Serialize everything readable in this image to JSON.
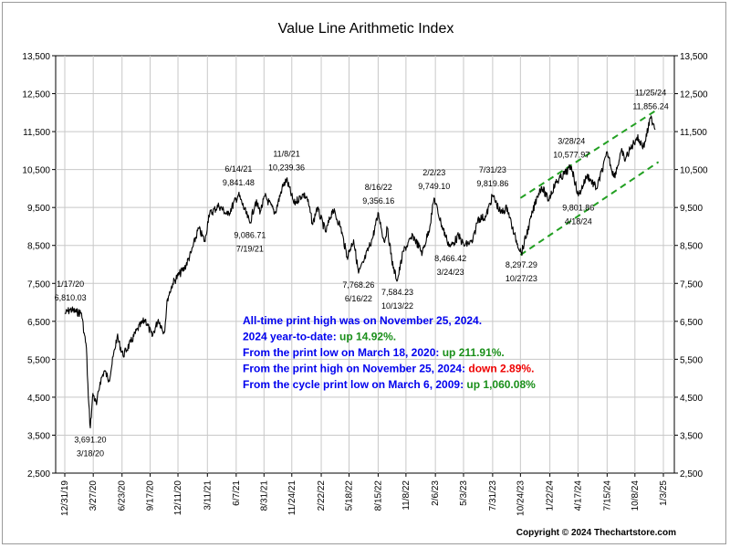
{
  "chart_data": {
    "type": "line",
    "title": "Value Line Arithmetic Index",
    "xlabel": "",
    "ylabel": "",
    "ylim": [
      2500,
      13500
    ],
    "yticks": [
      2500,
      3500,
      4500,
      5500,
      6500,
      7500,
      8500,
      9500,
      10500,
      11500,
      12500,
      13500
    ],
    "ytick_labels": [
      "2,500",
      "3,500",
      "4,500",
      "5,500",
      "6,500",
      "7,500",
      "8,500",
      "9,500",
      "10,500",
      "11,500",
      "12,500",
      "13,500"
    ],
    "xlim": [
      "2019-12-31",
      "2025-01-03"
    ],
    "xticks": [
      "2019-12-31",
      "2020-03-27",
      "2020-06-23",
      "2020-09-17",
      "2020-12-11",
      "2021-03-11",
      "2021-06-07",
      "2021-08-31",
      "2021-11-24",
      "2022-02-22",
      "2022-05-18",
      "2022-08-15",
      "2022-11-08",
      "2023-02-06",
      "2023-05-03",
      "2023-07-31",
      "2023-10-24",
      "2024-01-22",
      "2024-04-17",
      "2024-07-15",
      "2024-10-08",
      "2025-01-03"
    ],
    "xtick_labels": [
      "12/31/19",
      "3/27/20",
      "6/23/20",
      "9/17/20",
      "12/11/20",
      "3/11/21",
      "6/7/21",
      "8/31/21",
      "11/24/21",
      "2/22/22",
      "5/18/22",
      "8/15/22",
      "11/8/22",
      "2/6/23",
      "5/3/23",
      "7/31/23",
      "10/24/23",
      "1/22/24",
      "4/17/24",
      "7/15/24",
      "10/8/24",
      "1/3/25"
    ],
    "grid": true,
    "series": [
      {
        "name": "",
        "color": "#000000",
        "points": [
          [
            "2019-12-31",
            6700
          ],
          [
            "2020-01-17",
            6810
          ],
          [
            "2020-02-05",
            6740
          ],
          [
            "2020-02-20",
            6720
          ],
          [
            "2020-02-28",
            6200
          ],
          [
            "2020-03-06",
            5800
          ],
          [
            "2020-03-12",
            4500
          ],
          [
            "2020-03-18",
            3691
          ],
          [
            "2020-03-26",
            4600
          ],
          [
            "2020-04-06",
            4300
          ],
          [
            "2020-04-17",
            4900
          ],
          [
            "2020-04-30",
            5200
          ],
          [
            "2020-05-14",
            4950
          ],
          [
            "2020-06-08",
            6100
          ],
          [
            "2020-06-26",
            5600
          ],
          [
            "2020-07-20",
            5950
          ],
          [
            "2020-08-10",
            6300
          ],
          [
            "2020-09-02",
            6550
          ],
          [
            "2020-09-23",
            6100
          ],
          [
            "2020-10-12",
            6550
          ],
          [
            "2020-10-30",
            6200
          ],
          [
            "2020-11-09",
            7100
          ],
          [
            "2020-11-25",
            7500
          ],
          [
            "2020-12-11",
            7700
          ],
          [
            "2020-12-31",
            7900
          ],
          [
            "2021-01-20",
            8300
          ],
          [
            "2021-02-12",
            8950
          ],
          [
            "2021-03-04",
            8600
          ],
          [
            "2021-03-15",
            9300
          ],
          [
            "2021-04-15",
            9550
          ],
          [
            "2021-05-12",
            9300
          ],
          [
            "2021-06-14",
            9841
          ],
          [
            "2021-07-19",
            9087
          ],
          [
            "2021-08-05",
            9650
          ],
          [
            "2021-08-20",
            9400
          ],
          [
            "2021-09-03",
            9800
          ],
          [
            "2021-10-04",
            9350
          ],
          [
            "2021-10-25",
            10000
          ],
          [
            "2021-11-08",
            10239
          ],
          [
            "2021-12-01",
            9600
          ],
          [
            "2021-12-28",
            9850
          ],
          [
            "2022-01-10",
            9750
          ],
          [
            "2022-01-27",
            9050
          ],
          [
            "2022-02-09",
            9500
          ],
          [
            "2022-03-08",
            8850
          ],
          [
            "2022-03-29",
            9450
          ],
          [
            "2022-04-22",
            9000
          ],
          [
            "2022-05-12",
            8200
          ],
          [
            "2022-06-01",
            8650
          ],
          [
            "2022-06-16",
            7768
          ],
          [
            "2022-07-01",
            8050
          ],
          [
            "2022-07-29",
            8700
          ],
          [
            "2022-08-16",
            9356
          ],
          [
            "2022-09-02",
            8600
          ],
          [
            "2022-09-12",
            8950
          ],
          [
            "2022-09-30",
            7900
          ],
          [
            "2022-10-13",
            7584
          ],
          [
            "2022-10-31",
            8350
          ],
          [
            "2022-11-30",
            8750
          ],
          [
            "2022-12-28",
            8300
          ],
          [
            "2023-01-20",
            9000
          ],
          [
            "2023-02-02",
            9749
          ],
          [
            "2023-02-23",
            9100
          ],
          [
            "2023-03-13",
            8650
          ],
          [
            "2023-03-24",
            8466
          ],
          [
            "2023-04-18",
            8750
          ],
          [
            "2023-05-04",
            8500
          ],
          [
            "2023-05-31",
            8600
          ],
          [
            "2023-06-16",
            9200
          ],
          [
            "2023-07-10",
            9250
          ],
          [
            "2023-07-31",
            9820
          ],
          [
            "2023-08-25",
            9350
          ],
          [
            "2023-09-14",
            9500
          ],
          [
            "2023-10-04",
            8800
          ],
          [
            "2023-10-27",
            8297
          ],
          [
            "2023-11-20",
            9050
          ],
          [
            "2023-12-14",
            9800
          ],
          [
            "2023-12-28",
            10050
          ],
          [
            "2024-01-17",
            9700
          ],
          [
            "2024-02-09",
            10150
          ],
          [
            "2024-03-28",
            10578
          ],
          [
            "2024-04-18",
            9802
          ],
          [
            "2024-05-15",
            10350
          ],
          [
            "2024-06-13",
            10000
          ],
          [
            "2024-07-16",
            10950
          ],
          [
            "2024-08-05",
            10300
          ],
          [
            "2024-08-30",
            11000
          ],
          [
            "2024-09-06",
            10750
          ],
          [
            "2024-10-14",
            11350
          ],
          [
            "2024-11-04",
            11100
          ],
          [
            "2024-11-25",
            11856
          ],
          [
            "2024-12-05",
            11700
          ],
          [
            "2024-12-09",
            11550
          ]
        ]
      }
    ],
    "trend_channel": {
      "color": "#22a022",
      "lines": [
        [
          [
            "2023-10-24",
            9750
          ],
          [
            "2024-12-19",
            12100
          ]
        ],
        [
          [
            "2023-10-24",
            8250
          ],
          [
            "2024-12-19",
            10700
          ]
        ]
      ]
    },
    "annotations": [
      {
        "date": "2020-01-17",
        "value": 6810,
        "lines": [
          "1/17/20",
          "6,810.03"
        ],
        "position": "above"
      },
      {
        "date": "2020-03-18",
        "value": 3691,
        "lines": [
          "3,691.20",
          "3/18/20"
        ],
        "position": "below"
      },
      {
        "date": "2021-06-14",
        "value": 9841,
        "lines": [
          "6/14/21",
          "9,841.48"
        ],
        "position": "above"
      },
      {
        "date": "2021-07-19",
        "value": 9087,
        "lines": [
          "9,086.71",
          "7/19/21"
        ],
        "position": "below"
      },
      {
        "date": "2021-11-08",
        "value": 10239,
        "lines": [
          "11/8/21",
          "10,239.36"
        ],
        "position": "above"
      },
      {
        "date": "2022-06-16",
        "value": 7768,
        "lines": [
          "7,768.26",
          "6/16/22"
        ],
        "position": "below"
      },
      {
        "date": "2022-08-16",
        "value": 9356,
        "lines": [
          "8/16/22",
          "9,356.16"
        ],
        "position": "above"
      },
      {
        "date": "2022-10-13",
        "value": 7584,
        "lines": [
          "7,584.23",
          "10/13/22"
        ],
        "position": "below"
      },
      {
        "date": "2023-02-02",
        "value": 9749,
        "lines": [
          "2/2/23",
          "9,749.10"
        ],
        "position": "above"
      },
      {
        "date": "2023-03-24",
        "value": 8466,
        "lines": [
          "8,466.42",
          "3/24/23"
        ],
        "position": "below"
      },
      {
        "date": "2023-07-31",
        "value": 9820,
        "lines": [
          "7/31/23",
          "9,819.86"
        ],
        "position": "above"
      },
      {
        "date": "2023-10-27",
        "value": 8297,
        "lines": [
          "8,297.29",
          "10/27/23"
        ],
        "position": "below"
      },
      {
        "date": "2024-03-28",
        "value": 10578,
        "lines": [
          "3/28/24",
          "10,577.97"
        ],
        "position": "above"
      },
      {
        "date": "2024-04-18",
        "value": 9802,
        "lines": [
          "9,801.86",
          "4/18/24"
        ],
        "position": "below"
      },
      {
        "date": "2024-11-25",
        "value": 11856,
        "lines": [
          "11/25/24",
          "11,856.24"
        ],
        "position": "above"
      }
    ],
    "info_box": [
      {
        "parts": [
          {
            "text": "All-time print high was on November 25, 2024.",
            "color": "#0000ee"
          }
        ]
      },
      {
        "parts": [
          {
            "text": "2024 year-to-date: ",
            "color": "#0000ee"
          },
          {
            "text": "up 14.92%.",
            "color": "#1a8f1a"
          }
        ]
      },
      {
        "parts": [
          {
            "text": "From the print low on March 18, 2020:  ",
            "color": "#0000ee"
          },
          {
            "text": "up 211.91%.",
            "color": "#1a8f1a"
          }
        ]
      },
      {
        "parts": [
          {
            "text": "From the print high on November 25, 2024:  ",
            "color": "#0000ee"
          },
          {
            "text": "down 2.89%.",
            "color": "#ee0000"
          }
        ]
      },
      {
        "parts": [
          {
            "text": "From the cycle print low on March 6, 2009:  ",
            "color": "#0000ee"
          },
          {
            "text": "up 1,060.08%",
            "color": "#1a8f1a"
          }
        ]
      }
    ],
    "copyright": "Copyright © 2024 Thechartstore.com"
  }
}
